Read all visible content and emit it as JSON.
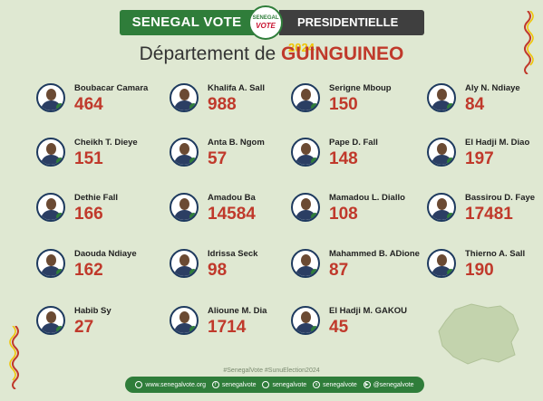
{
  "header": {
    "brand": "SENEGAL VOTE",
    "logo_top": "SENEGAL",
    "logo_bottom": "VOTE",
    "election": "PRESIDENTIELLE",
    "year": "2024"
  },
  "title": {
    "prefix": "Département de",
    "department": "GUINGUINEO"
  },
  "candidates": [
    {
      "name": "Boubacar Camara",
      "votes": "464"
    },
    {
      "name": "Khalifa A. Sall",
      "votes": "988"
    },
    {
      "name": "Serigne Mboup",
      "votes": "150"
    },
    {
      "name": "Aly N. Ndiaye",
      "votes": "84"
    },
    {
      "name": "Cheikh T. Dieye",
      "votes": "151"
    },
    {
      "name": "Anta B. Ngom",
      "votes": "57"
    },
    {
      "name": "Pape D. Fall",
      "votes": "148"
    },
    {
      "name": "El Hadji M. Diao",
      "votes": "197"
    },
    {
      "name": "Dethie Fall",
      "votes": "166"
    },
    {
      "name": "Amadou Ba",
      "votes": "14584"
    },
    {
      "name": "Mamadou L. Diallo",
      "votes": "108"
    },
    {
      "name": "Bassirou D. Faye",
      "votes": "17481"
    },
    {
      "name": "Daouda Ndiaye",
      "votes": "162"
    },
    {
      "name": "Idrissa Seck",
      "votes": "98"
    },
    {
      "name": "Mahammed B. ADione",
      "votes": "87"
    },
    {
      "name": "Thierno A. Sall",
      "votes": "190"
    },
    {
      "name": "Habib Sy",
      "votes": "27"
    },
    {
      "name": "Alioune M. Dia",
      "votes": "1714"
    },
    {
      "name": "El Hadji M. GAKOU",
      "votes": "45"
    }
  ],
  "hashtags": "#SenegalVote  #SunuElection2024",
  "footer": [
    {
      "icon": "globe-icon",
      "label": "www.senegalvote.org"
    },
    {
      "icon": "facebook-icon",
      "label": "senegalvote"
    },
    {
      "icon": "instagram-icon",
      "label": "senegalvote"
    },
    {
      "icon": "x-icon",
      "label": "senegalvote"
    },
    {
      "icon": "youtube-icon",
      "label": "@senegalvote"
    }
  ],
  "colors": {
    "green": "#2f7d3a",
    "red": "#c0392b",
    "dark": "#3f3f3f",
    "gold": "#f0c400",
    "background": "#dfe8d2"
  }
}
